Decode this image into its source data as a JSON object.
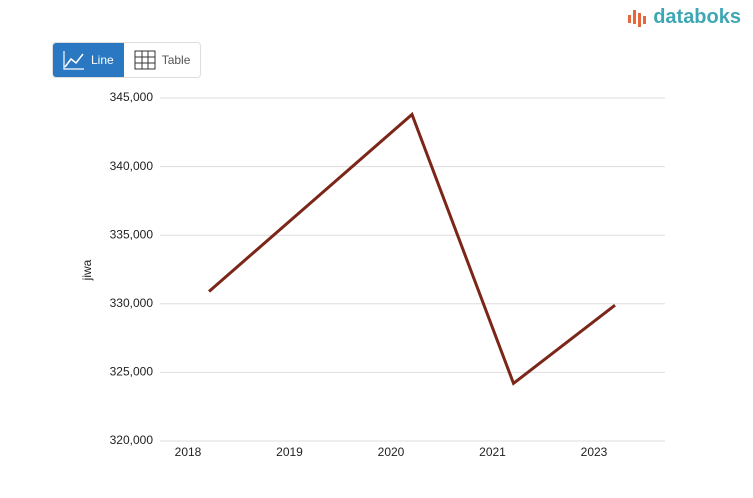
{
  "brand": "databoks",
  "controls": [
    "Line",
    "Table"
  ],
  "chart_data": {
    "type": "line",
    "y_label": "jiwa",
    "categories": [
      "2018",
      "2019",
      "2020",
      "2021",
      "2023"
    ],
    "series": [
      {
        "name": "jiwa",
        "color": "#7b2618",
        "values": [
          330900,
          337350,
          343800,
          324200,
          329900
        ]
      }
    ],
    "ylim": [
      320000,
      345000
    ],
    "yticks": [
      {
        "value": 320000,
        "label": "320,000"
      },
      {
        "value": 325000,
        "label": "325,000"
      },
      {
        "value": 330000,
        "label": "330,000"
      },
      {
        "value": 335000,
        "label": "335,000"
      },
      {
        "value": 340000,
        "label": "340,000"
      },
      {
        "value": 345000,
        "label": "345,000"
      }
    ],
    "grid": true
  }
}
